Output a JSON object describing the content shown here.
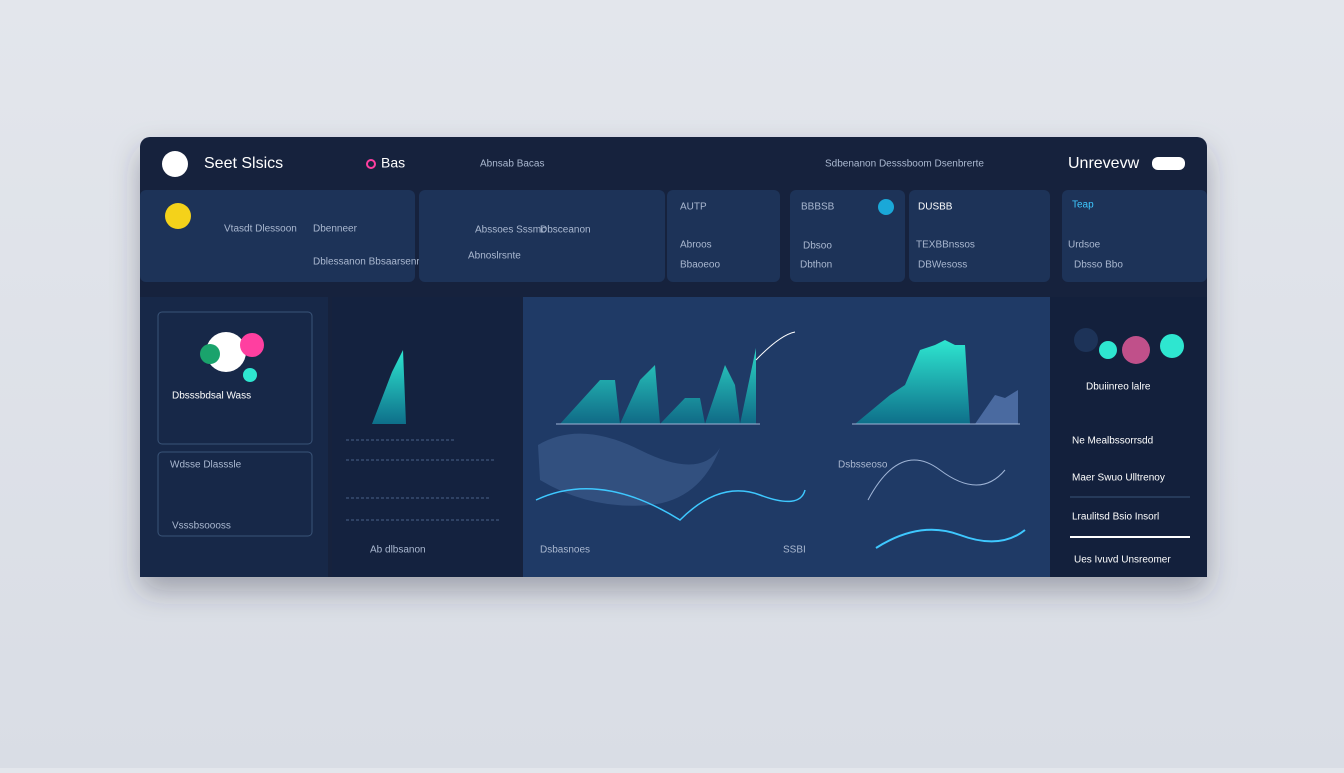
{
  "header": {
    "title": "Seet Slsics",
    "tab": "Bas",
    "subtitle": "Abnsab Bacas",
    "info": "Sdbenanon Desssboom Dsenbrerte",
    "right": "Unrevevw"
  },
  "cards": [
    {
      "title": "Vtasdt Dlessoon",
      "label": "Dbenneer",
      "detail": "Dblessanon Bbsaarsenroone"
    },
    {
      "title": "Abssoes Sssmc",
      "label": "Dbsceanon",
      "detail": "Abnoslrsnte"
    },
    {
      "title": "AUTP",
      "label": "Abroos",
      "detail": "Bbaoeoo"
    },
    {
      "title": "BBBSB",
      "label": "Dbsoo",
      "detail": "Dbthon"
    },
    {
      "title": "DUSBB",
      "label": "TEXBBnssos",
      "detail": "DBWesoss"
    },
    {
      "title": "Teap",
      "label": "Urdsoe",
      "detail": "Dbsso Bbo"
    }
  ],
  "left_panel": {
    "title": "Dbsssbdsal Wass",
    "item1": "Wdsse Dlasssle",
    "item2": "Vsssbsoooss"
  },
  "charts": {
    "left_caption": "Ab dlbsanon",
    "middle_caption": "Dsbasnoes",
    "middle_value": "SSBI",
    "right_caption": "Dsbsseoso"
  },
  "right_panel": {
    "title": "Dbuiinreo lalre",
    "items": [
      "Ne Mealbssorrsdd",
      "Maer Swuo Ulltrenoy",
      "Lraulitsd Bsio Insorl",
      "Ues Ivuvd Unsreomer"
    ]
  }
}
